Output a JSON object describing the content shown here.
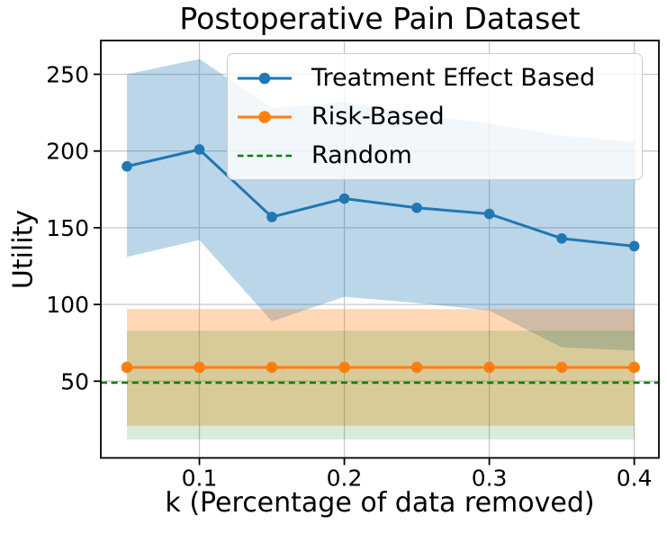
{
  "figure": {
    "background": "#ffffff",
    "text_color": "#000000"
  },
  "chart_data": {
    "type": "line",
    "title": "Postoperative Pain Dataset",
    "xlabel": "k (Percentage of data removed)",
    "ylabel": "Utility",
    "x": [
      0.05,
      0.1,
      0.15,
      0.2,
      0.25,
      0.3,
      0.35,
      0.4
    ],
    "xlim": [
      0.032,
      0.417
    ],
    "ylim": [
      0,
      272
    ],
    "x_ticks": {
      "values": [
        0.1,
        0.2,
        0.3,
        0.4
      ],
      "labels": [
        "0.1",
        "0.2",
        "0.3",
        "0.4"
      ]
    },
    "y_ticks": {
      "values": [
        50,
        100,
        150,
        200,
        250
      ],
      "labels": [
        "50",
        "100",
        "150",
        "200",
        "250"
      ]
    },
    "grid": true,
    "grid_color": "#c8c8c8",
    "spine_color": "#000000",
    "legend_position": "upper right",
    "series": [
      {
        "name": "Treatment Effect Based",
        "color": "#1f77b4",
        "line_style": "solid",
        "marker": "circle",
        "marker_size": 5.8,
        "values": [
          190,
          201,
          157,
          169,
          163,
          159,
          143,
          138
        ],
        "band_upper": [
          250,
          260,
          228,
          232,
          224,
          218,
          210,
          206
        ],
        "band_lower": [
          131,
          142,
          89,
          105,
          101,
          96,
          72,
          70
        ],
        "band_opacity": 0.3,
        "full_width": false
      },
      {
        "name": "Risk-Based",
        "color": "#ff7f0e",
        "line_style": "solid",
        "marker": "circle",
        "marker_size": 6.3,
        "values": [
          59,
          59,
          59,
          59,
          59,
          59,
          59,
          59
        ],
        "band_upper": [
          97,
          97,
          97,
          97,
          97,
          97,
          97,
          97
        ],
        "band_lower": [
          21,
          21,
          21,
          21,
          21,
          21,
          21,
          21
        ],
        "band_opacity": 0.3,
        "full_width": false
      },
      {
        "name": "Random",
        "color": "#008000",
        "line_style": "dashed",
        "marker": "none",
        "marker_size": 0,
        "values": [
          49,
          49,
          49,
          49,
          49,
          49,
          49,
          49
        ],
        "band_upper": [
          83,
          83,
          83,
          83,
          83,
          83,
          83,
          83
        ],
        "band_lower": [
          12,
          12,
          12,
          12,
          12,
          12,
          12,
          12
        ],
        "band_opacity": 0.15,
        "full_width": true
      }
    ]
  }
}
